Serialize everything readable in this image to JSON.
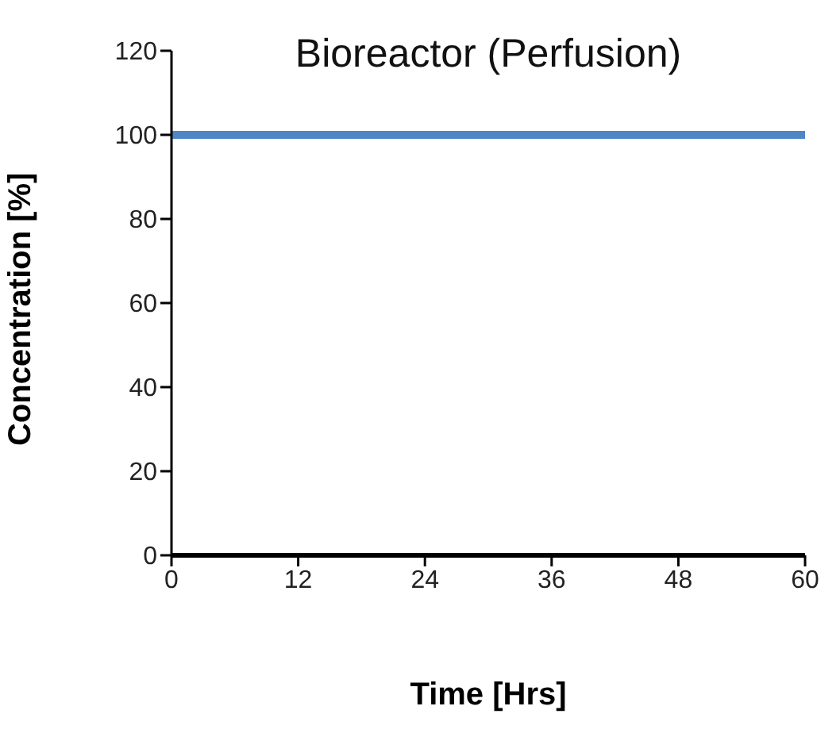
{
  "chart_data": {
    "type": "line",
    "title": "Bioreactor (Perfusion)",
    "xlabel": "Time [Hrs]",
    "ylabel": "Concentration [%]",
    "x": [
      0,
      60
    ],
    "series": [
      {
        "color": "#4f86c6",
        "values": [
          100,
          100
        ]
      }
    ],
    "xlim": [
      0,
      60
    ],
    "xticks": [
      0,
      12,
      24,
      36,
      48,
      60
    ],
    "ylim": [
      0,
      120
    ],
    "yticks": [
      0,
      20,
      40,
      60,
      80,
      100,
      120
    ],
    "grid": false,
    "legend": false,
    "marker": "none",
    "line_style": "solid"
  }
}
